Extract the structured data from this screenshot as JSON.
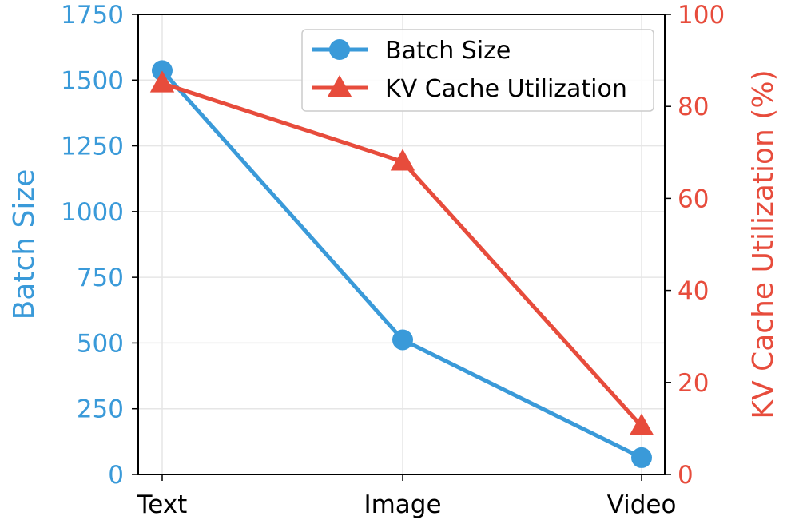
{
  "chart_data": {
    "type": "line",
    "categories": [
      "Text",
      "Image",
      "Video"
    ],
    "series": [
      {
        "name": "Batch Size",
        "axis": "left",
        "values": [
          1536,
          512,
          64
        ],
        "color": "#3a9ad9",
        "marker": "circle"
      },
      {
        "name": "KV Cache Utilization",
        "axis": "right",
        "values": [
          85,
          68,
          10.5
        ],
        "color": "#e74c3c",
        "marker": "triangle"
      }
    ],
    "y_left": {
      "label": "Batch Size",
      "lim": [
        0,
        1750
      ],
      "ticks": [
        0,
        250,
        500,
        750,
        1000,
        1250,
        1500,
        1750
      ],
      "color": "#3a9ad9"
    },
    "y_right": {
      "label": "KV Cache Utilization (%)",
      "lim": [
        0,
        100
      ],
      "ticks": [
        0,
        20,
        40,
        60,
        80,
        100
      ],
      "color": "#e74c3c"
    },
    "grid": true,
    "legend_position": "top-right"
  }
}
